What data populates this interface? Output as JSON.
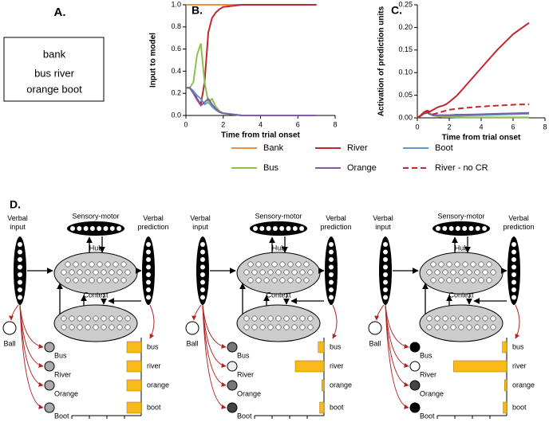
{
  "panel_a": {
    "label": "A.",
    "lines": [
      "bank",
      "bus river",
      "orange boot"
    ]
  },
  "chart_data": [
    {
      "type": "line",
      "label": "B.",
      "ylabel": "Input to model",
      "xlabel": "Time from trial onset",
      "x": [
        0,
        0.2,
        0.4,
        0.6,
        0.8,
        1.0,
        1.2,
        1.4,
        1.6,
        1.8,
        2.0,
        2.5,
        3,
        4,
        5,
        6,
        7
      ],
      "xlim": [
        0,
        8
      ],
      "xticks": [
        0,
        2,
        4,
        6,
        8
      ],
      "ylim": [
        0,
        1
      ],
      "yticks": [
        {
          "value": 0,
          "label": "0.0"
        },
        {
          "value": 0.2,
          "label": "0.2"
        },
        {
          "value": 0.4,
          "label": "0.4"
        },
        {
          "value": 0.6,
          "label": "0.6"
        },
        {
          "value": 0.8,
          "label": "0.8"
        },
        {
          "value": 1,
          "label": "1.0"
        }
      ],
      "series": [
        {
          "name": "Bank",
          "color": "#f28e3c",
          "values": [
            1,
            1,
            1,
            1,
            1,
            1,
            1,
            1,
            1,
            1,
            1,
            1,
            1,
            1,
            1,
            1,
            1
          ]
        },
        {
          "name": "River",
          "color": "#c0282d",
          "values": [
            0.25,
            0.25,
            0.22,
            0.15,
            0.1,
            0.3,
            0.75,
            0.88,
            0.93,
            0.96,
            0.98,
            0.99,
            1,
            1,
            1,
            1,
            1
          ]
        },
        {
          "name": "Boot",
          "color": "#5b9bd5",
          "values": [
            0.25,
            0.25,
            0.22,
            0.18,
            0.15,
            0.1,
            0.12,
            0.08,
            0.05,
            0.03,
            0.02,
            0.01,
            0,
            0,
            0,
            0,
            0
          ]
        },
        {
          "name": "Bus",
          "color": "#8cc152",
          "values": [
            0.25,
            0.25,
            0.3,
            0.55,
            0.65,
            0.3,
            0.12,
            0.15,
            0.08,
            0.04,
            0.02,
            0.01,
            0,
            0,
            0,
            0,
            0
          ]
        },
        {
          "name": "Orange",
          "color": "#7b5ea7",
          "values": [
            0.25,
            0.25,
            0.2,
            0.14,
            0.09,
            0.12,
            0.15,
            0.1,
            0.06,
            0.03,
            0.02,
            0.01,
            0,
            0,
            0,
            0,
            0
          ]
        }
      ]
    },
    {
      "type": "line",
      "label": "C.",
      "ylabel": "Activation of prediction units",
      "xlabel": "Time from trial onset",
      "x": [
        0,
        0.2,
        0.4,
        0.6,
        0.8,
        1.0,
        1.2,
        1.4,
        1.6,
        1.8,
        2.0,
        2.5,
        3,
        4,
        5,
        6,
        7
      ],
      "xlim": [
        0,
        8
      ],
      "xticks": [
        0,
        2,
        4,
        6,
        8
      ],
      "ylim": [
        0,
        0.25
      ],
      "yticks": [
        {
          "value": 0,
          "label": "0.00"
        },
        {
          "value": 0.05,
          "label": "0.05"
        },
        {
          "value": 0.1,
          "label": "0.10"
        },
        {
          "value": 0.15,
          "label": "0.15"
        },
        {
          "value": 0.2,
          "label": "0.20"
        },
        {
          "value": 0.25,
          "label": "0.25"
        }
      ],
      "series": [
        {
          "name": "Boot",
          "color": "#5b9bd5",
          "values": [
            0,
            0.004,
            0.01,
            0.012,
            0.008,
            0.005,
            0.004,
            0.003,
            0.003,
            0.003,
            0.003,
            0.004,
            0.005,
            0.006,
            0.007,
            0.008,
            0.009
          ]
        },
        {
          "name": "Bus",
          "color": "#8cc152",
          "values": [
            0,
            0.005,
            0.012,
            0.015,
            0.01,
            0.006,
            0.004,
            0.003,
            0.002,
            0.002,
            0.002,
            0.001,
            0.001,
            0.001,
            0.001,
            0.001,
            0.001
          ]
        },
        {
          "name": "Orange",
          "color": "#7b5ea7",
          "values": [
            0,
            0.004,
            0.009,
            0.011,
            0.008,
            0.006,
            0.006,
            0.006,
            0.006,
            0.006,
            0.006,
            0.007,
            0.007,
            0.008,
            0.009,
            0.01,
            0.011
          ]
        },
        {
          "name": "River",
          "color": "#c0282d",
          "values": [
            0,
            0.005,
            0.012,
            0.016,
            0.014,
            0.018,
            0.022,
            0.025,
            0.027,
            0.03,
            0.035,
            0.05,
            0.07,
            0.11,
            0.15,
            0.185,
            0.21
          ]
        },
        {
          "name": "River - no CR",
          "color": "#c0282d",
          "dashed": true,
          "values": [
            0,
            0.005,
            0.01,
            0.014,
            0.01,
            0.008,
            0.01,
            0.012,
            0.014,
            0.016,
            0.018,
            0.02,
            0.022,
            0.025,
            0.027,
            0.029,
            0.03
          ]
        }
      ]
    }
  ],
  "panel_d": {
    "label": "D.",
    "diagrams": [
      {
        "verbal_input": "Verbal input",
        "sensory_motor": "Sensory-motor",
        "hub": "Hub",
        "verbal_prediction": "Verbal prediction",
        "context": "Context",
        "ball": "Ball",
        "words": [
          "Bus",
          "River",
          "Orange",
          "Boot"
        ],
        "node_colors": [
          "#aaaaaa",
          "#aaaaaa",
          "#aaaaaa",
          "#aaaaaa"
        ],
        "bar_labels": [
          "bus",
          "river",
          "orange",
          "boot"
        ],
        "bar_values": [
          0.2,
          0.2,
          0.2,
          0.2
        ],
        "bar_color": "#f9b919"
      },
      {
        "verbal_input": "Verbal input",
        "sensory_motor": "Sensory-motor",
        "hub": "Hub",
        "verbal_prediction": "Verbal prediction",
        "context": "Context",
        "ball": "Ball",
        "words": [
          "Bus",
          "River",
          "Orange",
          "Boot"
        ],
        "node_colors": [
          "#777777",
          "#eeeeee",
          "#777777",
          "#444444"
        ],
        "bar_labels": [
          "bus",
          "river",
          "orange",
          "boot"
        ],
        "bar_values": [
          0.08,
          0.4,
          0.03,
          0.06
        ],
        "bar_color": "#f9b919"
      },
      {
        "verbal_input": "Verbal input",
        "sensory_motor": "Sensory-motor",
        "hub": "Hub",
        "verbal_prediction": "Verbal prediction",
        "context": "Context",
        "ball": "Ball",
        "words": [
          "Bus",
          "River",
          "Orange",
          "Boot"
        ],
        "node_colors": [
          "#000000",
          "#ffffff",
          "#444444",
          "#000000"
        ],
        "bar_labels": [
          "bus",
          "river",
          "orange",
          "boot"
        ],
        "bar_values": [
          0.06,
          0.74,
          0.03,
          0.05
        ],
        "bar_color": "#f9b919"
      }
    ]
  }
}
